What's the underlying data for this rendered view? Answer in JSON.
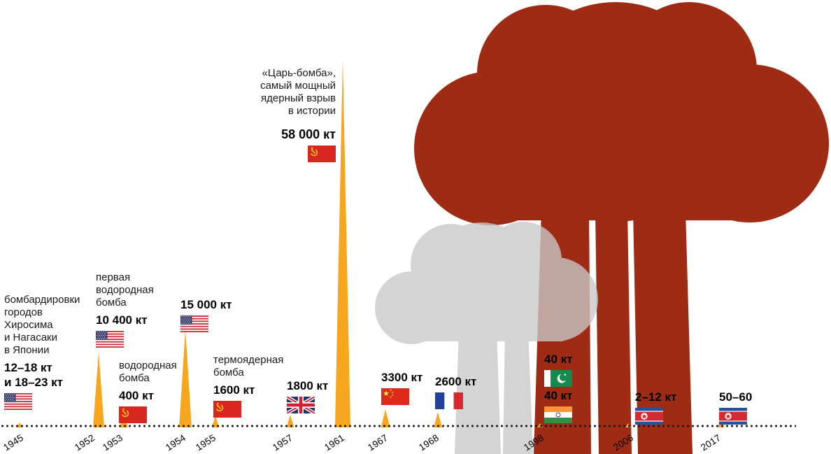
{
  "chart_data": {
    "type": "pictorial-timeline-bar",
    "title": "",
    "unit": "кт",
    "axis": {
      "baseline_style": "dotted",
      "years": [
        "1945",
        "1952",
        "1953",
        "1954",
        "1955",
        "1957",
        "1961",
        "1967",
        "1968",
        "1998",
        "2006",
        "2017"
      ]
    },
    "palette": {
      "spike": "#F6A71F",
      "cloud_large": "#9E2B14",
      "cloud_small": "#C9C9C9",
      "text": "#1A1A1A"
    },
    "annotations": [
      {
        "year": "1945",
        "flag": "usa",
        "label": "бомбардировки\nгородов\nХиросима\nи Нагасаки\nв Японии",
        "value": "12–18 кт\nи 18–23 кт",
        "kt_min": 12,
        "kt_max": 23
      },
      {
        "year": "1952",
        "flag": "usa",
        "label": "первая\nводородная\nбомба",
        "value": "10 400 кт",
        "kt": 10400
      },
      {
        "year": "1953",
        "flag": "ussr",
        "label": "водородная\nбомба",
        "value": "400 кт",
        "kt": 400
      },
      {
        "year": "1954",
        "flag": "usa",
        "label": "",
        "value": "15 000 кт",
        "kt": 15000
      },
      {
        "year": "1955",
        "flag": "ussr",
        "label": "термоядерная\nбомба",
        "value": "1600 кт",
        "kt": 1600
      },
      {
        "year": "1957",
        "flag": "uk",
        "label": "",
        "value": "1800 кт",
        "kt": 1800
      },
      {
        "year": "1961",
        "flag": "ussr",
        "label": "«Царь-бомба»,\nсамый мощный\nядерный взрыв\nв истории",
        "value": "58 000 кт",
        "kt": 58000
      },
      {
        "year": "1967",
        "flag": "china",
        "label": "",
        "value": "3300 кт",
        "kt": 3300
      },
      {
        "year": "1968",
        "flag": "france",
        "label": "",
        "value": "2600 кт",
        "kt": 2600
      },
      {
        "year": "1998",
        "flag": "pakistan",
        "label": "",
        "value": "40 кт",
        "kt": 40
      },
      {
        "year": "1998",
        "flag": "india",
        "label": "",
        "value": "40 кт",
        "kt": 40
      },
      {
        "year": "2006",
        "flag": "north-korea",
        "label": "",
        "value": "2–12 кт",
        "kt_min": 2,
        "kt_max": 12
      },
      {
        "year": "2017",
        "flag": "north-korea",
        "label": "",
        "value": "50–60",
        "kt_min": 50,
        "kt_max": 60
      }
    ]
  }
}
